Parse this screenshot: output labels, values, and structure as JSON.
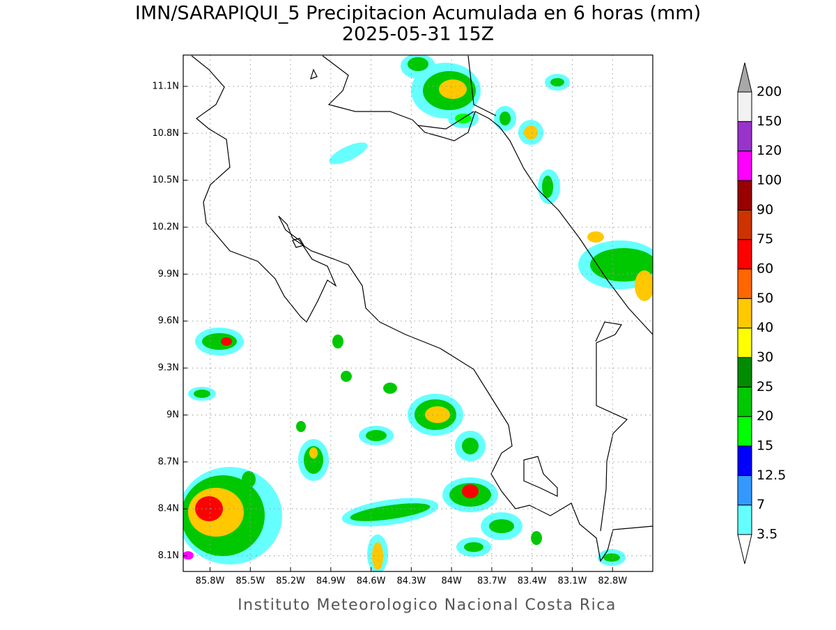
{
  "map": {
    "title": "IMN/SARAPIQUI_5 Precipitacion Acumulada en 6 horas (mm)",
    "subtitle": "2025-05-31 15Z",
    "footer": "Instituto Meteorologico Nacional Costa Rica",
    "lonlim": [
      -86,
      -82.5
    ],
    "latlim": [
      8,
      11.3
    ],
    "grid": true,
    "lonticks": [
      {
        "value": -85.8,
        "label": "85.8W"
      },
      {
        "value": -85.5,
        "label": "85.5W"
      },
      {
        "value": -85.2,
        "label": "85.2W"
      },
      {
        "value": -84.9,
        "label": "84.9W"
      },
      {
        "value": -84.6,
        "label": "84.6W"
      },
      {
        "value": -84.3,
        "label": "84.3W"
      },
      {
        "value": -84,
        "label": "84W"
      },
      {
        "value": -83.7,
        "label": "83.7W"
      },
      {
        "value": -83.4,
        "label": "83.4W"
      },
      {
        "value": -83.1,
        "label": "83.1W"
      },
      {
        "value": -82.8,
        "label": "82.8W"
      }
    ],
    "latticks": [
      {
        "value": 8.1,
        "label": "8.1N"
      },
      {
        "value": 8.4,
        "label": "8.4N"
      },
      {
        "value": 8.7,
        "label": "8.7N"
      },
      {
        "value": 9,
        "label": "9N"
      },
      {
        "value": 9.3,
        "label": "9.3N"
      },
      {
        "value": 9.6,
        "label": "9.6N"
      },
      {
        "value": 9.9,
        "label": "9.9N"
      },
      {
        "value": 10.2,
        "label": "10.2N"
      },
      {
        "value": 10.5,
        "label": "10.5N"
      },
      {
        "value": 10.8,
        "label": "10.8N"
      },
      {
        "value": 11.1,
        "label": "11.1N"
      }
    ]
  },
  "colorbar": {
    "levels": [
      3.5,
      7,
      12.5,
      15,
      20,
      25,
      30,
      40,
      50,
      60,
      75,
      90,
      100,
      120,
      150,
      200
    ],
    "colors": [
      "#ffffff",
      "#66ffff",
      "#3399ff",
      "#0000ff",
      "#00ff00",
      "#00c800",
      "#008c00",
      "#ffff00",
      "#ffc800",
      "#ff6600",
      "#ff0000",
      "#cc3300",
      "#990000",
      "#ff00ff",
      "#9933cc",
      "#f2f2f2",
      "#a8a8a8"
    ]
  }
}
